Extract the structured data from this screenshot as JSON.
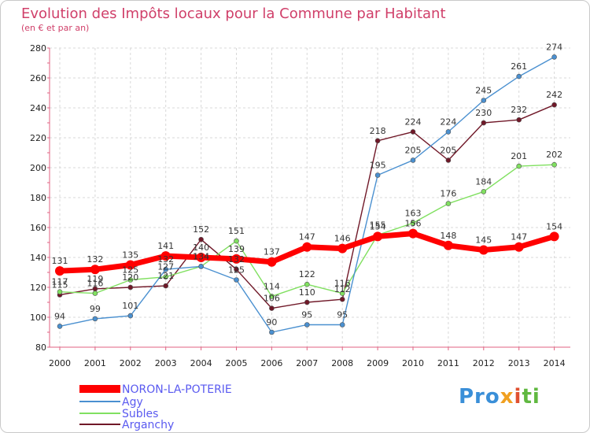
{
  "chart_data": {
    "type": "line",
    "title": "Evolution des Impôts locaux pour la Commune par Habitant",
    "subtitle": "(en € et par an)",
    "xlabel": "",
    "ylabel": "",
    "ylim": [
      80,
      280
    ],
    "yticks": [
      80,
      100,
      120,
      140,
      160,
      180,
      200,
      220,
      240,
      260,
      280
    ],
    "categories": [
      "2000",
      "2001",
      "2002",
      "2003",
      "2004",
      "2005",
      "2006",
      "2007",
      "2008",
      "2009",
      "2010",
      "2011",
      "2012",
      "2013",
      "2014"
    ],
    "series": [
      {
        "name": "NORON-LA-POTERIE",
        "color": "#ff0000",
        "values": [
          131,
          132,
          135,
          141,
          140,
          139,
          137,
          147,
          146,
          154,
          156,
          148,
          145,
          147,
          154
        ]
      },
      {
        "name": "Agy",
        "color": "#4a90d0",
        "values": [
          94,
          99,
          101,
          132,
          134,
          125,
          90,
          95,
          95,
          195,
          205,
          224,
          245,
          261,
          274
        ]
      },
      {
        "name": "Subles",
        "color": "#80e060",
        "values": [
          117,
          116,
          125,
          127,
          134,
          151,
          114,
          122,
          116,
          155,
          163,
          176,
          184,
          201,
          202
        ]
      },
      {
        "name": "Arganchy",
        "color": "#701828",
        "values": [
          115,
          119,
          120,
          121,
          152,
          132,
          106,
          110,
          112,
          218,
          224,
          205,
          230,
          232,
          242
        ]
      }
    ]
  },
  "brand": {
    "p1": "Pro",
    "p2": "x",
    "p3": "i",
    "p4": "ti"
  }
}
